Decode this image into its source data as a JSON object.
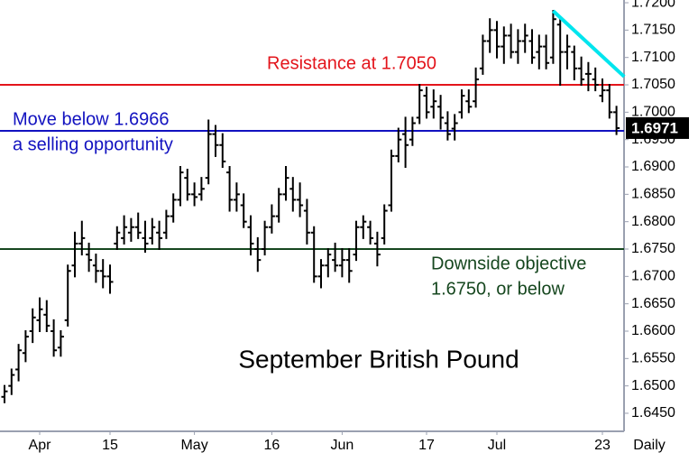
{
  "chart_data": {
    "type": "ohlc",
    "title": "September British Pound",
    "x_unit_label": "Daily",
    "bar_color": "#000000",
    "categories": [
      null,
      null,
      null,
      null,
      null,
      "Apr",
      null,
      null,
      null,
      null,
      null,
      null,
      null,
      null,
      null,
      "15",
      null,
      null,
      null,
      null,
      null,
      null,
      null,
      null,
      null,
      null,
      null,
      "May",
      null,
      null,
      null,
      null,
      null,
      null,
      null,
      null,
      null,
      null,
      "16",
      null,
      null,
      null,
      null,
      null,
      null,
      null,
      null,
      null,
      "Jun",
      null,
      null,
      null,
      null,
      null,
      null,
      null,
      null,
      null,
      null,
      null,
      "17",
      null,
      null,
      null,
      null,
      null,
      null,
      null,
      null,
      null,
      "Jul",
      null,
      null,
      null,
      null,
      null,
      null,
      null,
      null,
      null,
      null,
      null,
      null,
      null,
      null,
      "23",
      null,
      null
    ],
    "open": [
      1.648,
      1.65,
      1.653,
      1.656,
      1.66,
      1.662,
      1.663,
      1.66,
      1.657,
      1.662,
      1.672,
      1.676,
      1.674,
      1.672,
      1.671,
      1.67,
      1.676,
      1.677,
      1.678,
      1.679,
      1.677,
      1.677,
      1.678,
      1.678,
      1.681,
      1.684,
      1.688,
      1.685,
      1.685,
      1.688,
      1.696,
      1.694,
      1.689,
      1.684,
      1.683,
      1.679,
      1.675,
      1.675,
      1.679,
      1.681,
      1.685,
      1.686,
      1.684,
      1.682,
      1.678,
      1.67,
      1.672,
      1.673,
      1.672,
      1.673,
      1.674,
      1.679,
      1.679,
      1.676,
      1.677,
      1.683,
      1.692,
      1.696,
      1.695,
      1.699,
      1.703,
      1.701,
      1.701,
      1.698,
      1.697,
      1.7,
      1.702,
      1.702,
      1.708,
      1.713,
      1.715,
      1.712,
      1.714,
      1.711,
      1.713,
      1.713,
      1.711,
      1.712,
      1.71,
      1.716,
      1.711,
      1.711,
      1.708,
      1.707,
      1.706,
      1.703,
      1.704,
      1.7
    ],
    "high": [
      1.65,
      1.653,
      1.6575,
      1.66,
      1.664,
      1.666,
      1.6655,
      1.662,
      1.66,
      1.672,
      1.678,
      1.68,
      1.676,
      1.674,
      1.673,
      1.672,
      1.679,
      1.681,
      1.6805,
      1.6815,
      1.68,
      1.6805,
      1.68,
      1.682,
      1.685,
      1.69,
      1.6895,
      1.687,
      1.688,
      1.6985,
      1.6975,
      1.696,
      1.69,
      1.687,
      1.685,
      1.681,
      1.677,
      1.68,
      1.683,
      1.686,
      1.69,
      1.688,
      1.687,
      1.684,
      1.679,
      1.673,
      1.675,
      1.676,
      1.675,
      1.675,
      1.68,
      1.681,
      1.68,
      1.678,
      1.683,
      1.693,
      1.697,
      1.699,
      1.699,
      1.705,
      1.7045,
      1.704,
      1.703,
      1.7,
      1.6995,
      1.704,
      1.704,
      1.708,
      1.714,
      1.717,
      1.7165,
      1.7155,
      1.716,
      1.715,
      1.716,
      1.715,
      1.714,
      1.714,
      1.7185,
      1.717,
      1.714,
      1.712,
      1.71,
      1.709,
      1.708,
      1.706,
      1.705,
      1.701
    ],
    "low": [
      1.647,
      1.6485,
      1.651,
      1.6545,
      1.658,
      1.66,
      1.66,
      1.6555,
      1.6555,
      1.661,
      1.67,
      1.674,
      1.671,
      1.669,
      1.668,
      1.667,
      1.675,
      1.676,
      1.6765,
      1.677,
      1.6745,
      1.676,
      1.675,
      1.677,
      1.68,
      1.683,
      1.684,
      1.683,
      1.684,
      1.687,
      1.692,
      1.69,
      1.682,
      1.682,
      1.679,
      1.674,
      1.671,
      1.674,
      1.678,
      1.68,
      1.684,
      1.682,
      1.681,
      1.676,
      1.669,
      1.668,
      1.67,
      1.671,
      1.67,
      1.669,
      1.673,
      1.677,
      1.676,
      1.672,
      1.676,
      1.682,
      1.691,
      1.69,
      1.694,
      1.698,
      1.699,
      1.699,
      1.697,
      1.695,
      1.695,
      1.699,
      1.7,
      1.701,
      1.707,
      1.711,
      1.71,
      1.709,
      1.71,
      1.709,
      1.711,
      1.709,
      1.708,
      1.708,
      1.709,
      1.705,
      1.708,
      1.706,
      1.705,
      1.704,
      1.704,
      1.702,
      1.699,
      1.696
    ],
    "close": [
      1.649,
      1.652,
      1.6565,
      1.659,
      1.6625,
      1.664,
      1.661,
      1.6565,
      1.659,
      1.671,
      1.676,
      1.677,
      1.673,
      1.671,
      1.67,
      1.669,
      1.678,
      1.679,
      1.679,
      1.678,
      1.676,
      1.679,
      1.677,
      1.681,
      1.684,
      1.689,
      1.685,
      1.6845,
      1.686,
      1.696,
      1.694,
      1.691,
      1.684,
      1.685,
      1.68,
      1.676,
      1.673,
      1.679,
      1.681,
      1.685,
      1.688,
      1.684,
      1.683,
      1.678,
      1.67,
      1.672,
      1.674,
      1.672,
      1.673,
      1.671,
      1.679,
      1.68,
      1.677,
      1.674,
      1.682,
      1.692,
      1.695,
      1.694,
      1.698,
      1.704,
      1.7,
      1.702,
      1.699,
      1.696,
      1.698,
      1.703,
      1.701,
      1.706,
      1.713,
      1.715,
      1.712,
      1.714,
      1.711,
      1.713,
      1.714,
      1.71,
      1.712,
      1.709,
      1.717,
      1.711,
      1.712,
      1.708,
      1.706,
      1.707,
      1.705,
      1.704,
      1.7,
      1.6971
    ],
    "ylim": [
      1.6417,
      1.7205
    ],
    "yticks": [
      {
        "value": 1.645,
        "label": "1.6450"
      },
      {
        "value": 1.65,
        "label": "1.6500"
      },
      {
        "value": 1.655,
        "label": "1.6550"
      },
      {
        "value": 1.66,
        "label": "1.6600"
      },
      {
        "value": 1.665,
        "label": "1.6650"
      },
      {
        "value": 1.67,
        "label": "1.6700"
      },
      {
        "value": 1.675,
        "label": "1.6750"
      },
      {
        "value": 1.68,
        "label": "1.6800"
      },
      {
        "value": 1.685,
        "label": "1.6850"
      },
      {
        "value": 1.69,
        "label": "1.6900"
      },
      {
        "value": 1.695,
        "label": "1.6950"
      },
      {
        "value": 1.7,
        "label": "1.7000"
      },
      {
        "value": 1.705,
        "label": "1.7050"
      },
      {
        "value": 1.71,
        "label": "1.7100"
      },
      {
        "value": 1.715,
        "label": "1.7150"
      },
      {
        "value": 1.72,
        "label": "1.7200"
      }
    ],
    "lines": [
      {
        "value": 1.705,
        "color": "#e3141b",
        "labels": [
          "Resistance at 1.7050"
        ]
      },
      {
        "value": 1.6966,
        "color": "#1212c0",
        "labels": [
          "Move below 1.6966",
          "a selling opportunity"
        ]
      },
      {
        "value": 1.675,
        "color": "#16471f",
        "labels": [
          "Downside objective",
          "1.6750, or below"
        ]
      }
    ],
    "trendline": {
      "color": "#00e5ee",
      "x": [
        78,
        88.1
      ],
      "y": [
        1.7185,
        1.7065
      ]
    }
  }
}
